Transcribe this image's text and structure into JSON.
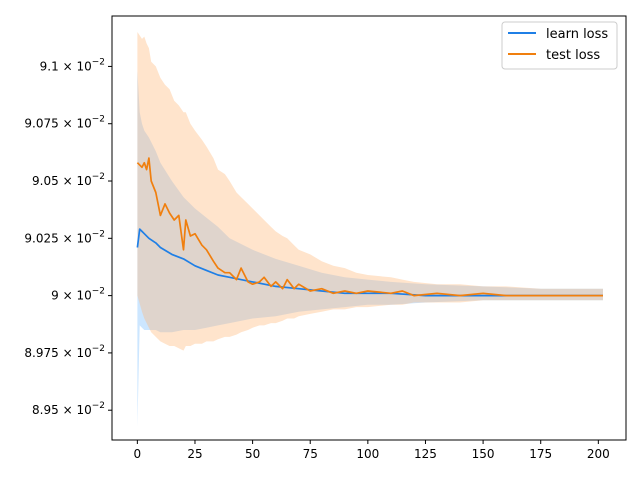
{
  "colors": {
    "learn": "#1f7fe6",
    "test": "#f07f0e",
    "learn_band": "#8ec7ff",
    "test_band": "#ffb87a",
    "axis": "#000000"
  },
  "chart_data": {
    "type": "line",
    "xlabel": "",
    "ylabel": "",
    "xlim": [
      -11,
      212
    ],
    "ylim": [
      0.08937,
      0.09122
    ],
    "x_ticks": [
      0,
      25,
      50,
      75,
      100,
      125,
      150,
      175,
      200
    ],
    "x_tick_labels": [
      "0",
      "25",
      "50",
      "75",
      "100",
      "125",
      "150",
      "175",
      "200"
    ],
    "y_ticks": [
      0.0895,
      0.08975,
      0.09,
      0.09025,
      0.0905,
      0.09075,
      0.091
    ],
    "y_tick_labels": [
      {
        "mant": "8.95",
        "exp": "-2"
      },
      {
        "mant": "8.975",
        "exp": "-2"
      },
      {
        "mant": "9",
        "exp": "-2"
      },
      {
        "mant": "9.025",
        "exp": "-2"
      },
      {
        "mant": "9.05",
        "exp": "-2"
      },
      {
        "mant": "9.075",
        "exp": "-2"
      },
      {
        "mant": "9.1",
        "exp": "-2"
      }
    ],
    "legend_position": "top-right",
    "series": [
      {
        "name": "learn loss",
        "x": [
          0,
          1,
          2,
          3,
          5,
          8,
          10,
          15,
          20,
          25,
          30,
          35,
          40,
          50,
          60,
          70,
          80,
          90,
          100,
          110,
          125,
          150,
          175,
          202
        ],
        "y": [
          0.09021,
          0.09029,
          0.09028,
          0.09027,
          0.09025,
          0.09023,
          0.09021,
          0.09018,
          0.09016,
          0.09013,
          0.09011,
          0.09009,
          0.09008,
          0.09006,
          0.09004,
          0.09003,
          0.09002,
          0.09001,
          0.09001,
          0.09001,
          0.09,
          0.09,
          0.09,
          0.09
        ],
        "band_upper": [
          0.09098,
          0.0908,
          0.09075,
          0.09072,
          0.09069,
          0.09063,
          0.09058,
          0.0905,
          0.09043,
          0.09038,
          0.09034,
          0.0903,
          0.09025,
          0.0902,
          0.09016,
          0.09013,
          0.0901,
          0.09008,
          0.09007,
          0.09006,
          0.09005,
          0.09004,
          0.09003,
          0.09003
        ],
        "band_lower": [
          0.08943,
          0.08987,
          0.08986,
          0.08985,
          0.08985,
          0.08985,
          0.08984,
          0.08984,
          0.08985,
          0.08985,
          0.08986,
          0.08987,
          0.08988,
          0.0899,
          0.08991,
          0.08993,
          0.08994,
          0.08995,
          0.08996,
          0.08996,
          0.08997,
          0.08998,
          0.08998,
          0.08998
        ]
      },
      {
        "name": "test loss",
        "x": [
          0,
          2,
          3,
          4,
          5,
          6,
          8,
          10,
          12,
          14,
          16,
          18,
          20,
          21,
          23,
          25,
          28,
          30,
          33,
          35,
          38,
          40,
          43,
          45,
          48,
          50,
          53,
          55,
          58,
          60,
          63,
          65,
          68,
          70,
          75,
          80,
          85,
          90,
          95,
          100,
          110,
          115,
          120,
          130,
          140,
          150,
          160,
          175,
          190,
          202
        ],
        "y": [
          0.09058,
          0.09056,
          0.09058,
          0.09055,
          0.0906,
          0.0905,
          0.09045,
          0.09035,
          0.0904,
          0.09036,
          0.09033,
          0.09035,
          0.0902,
          0.09033,
          0.09026,
          0.09027,
          0.09022,
          0.0902,
          0.09015,
          0.09012,
          0.0901,
          0.0901,
          0.09007,
          0.09012,
          0.09006,
          0.09005,
          0.09006,
          0.09008,
          0.09004,
          0.09006,
          0.09003,
          0.09007,
          0.09003,
          0.09005,
          0.09002,
          0.09003,
          0.09001,
          0.09002,
          0.09001,
          0.09002,
          0.09001,
          0.09002,
          0.09,
          0.09001,
          0.09,
          0.09001,
          0.09,
          0.09,
          0.09,
          0.09
        ],
        "band_upper": [
          0.09115,
          0.09112,
          0.09113,
          0.0911,
          0.09108,
          0.09102,
          0.091,
          0.09095,
          0.09092,
          0.0909,
          0.09085,
          0.09083,
          0.0908,
          0.0908,
          0.09075,
          0.09072,
          0.09068,
          0.09065,
          0.0906,
          0.09055,
          0.09053,
          0.0905,
          0.09045,
          0.09043,
          0.0904,
          0.09038,
          0.09035,
          0.09033,
          0.0903,
          0.09028,
          0.09026,
          0.09025,
          0.09022,
          0.0902,
          0.09018,
          0.09015,
          0.09013,
          0.09012,
          0.0901,
          0.09009,
          0.09008,
          0.09007,
          0.09006,
          0.09005,
          0.09005,
          0.09004,
          0.09004,
          0.09003,
          0.09003,
          0.09003
        ],
        "band_lower": [
          0.09,
          0.08993,
          0.0899,
          0.08988,
          0.08986,
          0.08984,
          0.08982,
          0.0898,
          0.08979,
          0.08978,
          0.08978,
          0.08977,
          0.08976,
          0.08978,
          0.08978,
          0.08979,
          0.08979,
          0.0898,
          0.0898,
          0.08981,
          0.08982,
          0.08982,
          0.08983,
          0.08984,
          0.08985,
          0.08986,
          0.08987,
          0.08987,
          0.08988,
          0.08988,
          0.08989,
          0.0899,
          0.0899,
          0.08991,
          0.08992,
          0.08993,
          0.08994,
          0.08994,
          0.08995,
          0.08995,
          0.08996,
          0.08996,
          0.08997,
          0.08997,
          0.08997,
          0.08998,
          0.08998,
          0.08998,
          0.08998,
          0.08998
        ]
      }
    ]
  }
}
